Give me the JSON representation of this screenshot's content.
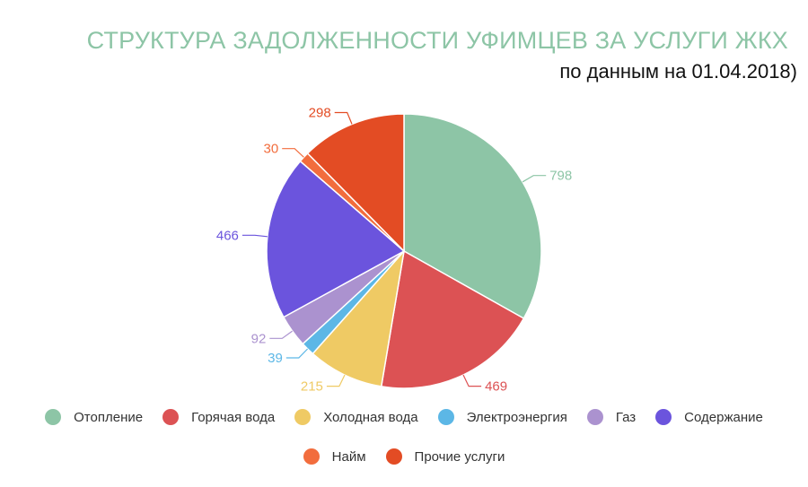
{
  "title": "СТРУКТУРА ЗАДОЛЖЕННОСТИ УФИМЦЕВ ЗА УСЛУГИ ЖКХ",
  "subtitle": "по данным на 01.04.2018)",
  "chart_data": {
    "type": "pie",
    "legend_position": "bottom",
    "slices": [
      {
        "label": "Отопление",
        "value": 798,
        "color": "#8dc5a6"
      },
      {
        "label": "Горячая вода",
        "value": 469,
        "color": "#dc5254"
      },
      {
        "label": "Холодная вода",
        "value": 215,
        "color": "#efca64"
      },
      {
        "label": "Электроэнергия",
        "value": 39,
        "color": "#5cb7e6"
      },
      {
        "label": "Газ",
        "value": 92,
        "color": "#ab92cf"
      },
      {
        "label": "Содержание",
        "value": 466,
        "color": "#6b54dd"
      },
      {
        "label": "Найм",
        "value": 30,
        "color": "#f26d3d"
      },
      {
        "label": "Прочие услуги",
        "value": 298,
        "color": "#e34c24"
      }
    ]
  }
}
